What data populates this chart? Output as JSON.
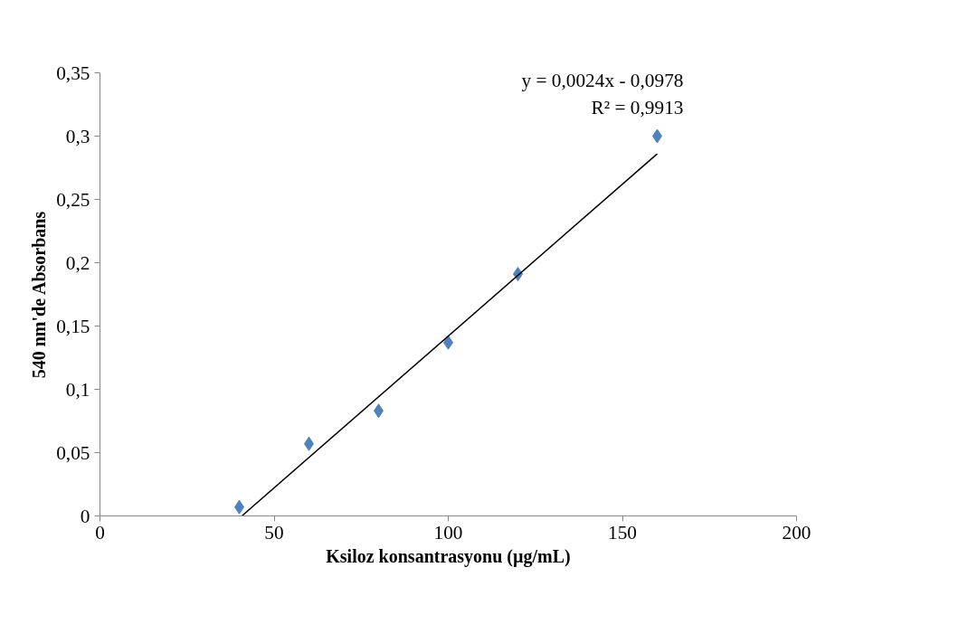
{
  "chart_data": {
    "type": "scatter",
    "xlabel": "Ksiloz konsantrasyonu (µg/mL)",
    "ylabel": "540 nm'de Absorbans",
    "annotations": [
      "y = 0,0024x - 0,0978",
      "R² = 0,9913"
    ],
    "series": [
      {
        "color": "#4f81bd",
        "marker": "diamond",
        "x": [
          40,
          60,
          80,
          100,
          120,
          160
        ],
        "values": [
          0.007,
          0.057,
          0.083,
          0.137,
          0.191,
          0.3
        ]
      },
      {
        "type": "line",
        "color": "#000000",
        "x": [
          40.75,
          160
        ],
        "values": [
          0,
          0.286
        ]
      }
    ],
    "xlim": [
      0,
      200
    ],
    "xticks": [
      0,
      50,
      100,
      150,
      200
    ],
    "ylim": [
      0,
      0.35
    ],
    "yticks": [
      0,
      {
        "value": 0.05,
        "label": "0,05"
      },
      {
        "value": 0.1,
        "label": "0,1"
      },
      {
        "value": 0.15,
        "label": "0,15"
      },
      {
        "value": 0.2,
        "label": "0,2"
      },
      {
        "value": 0.25,
        "label": "0,25"
      },
      {
        "value": 0.3,
        "label": "0,3"
      },
      {
        "value": 0.35,
        "label": "0,35"
      }
    ],
    "grid": false
  }
}
